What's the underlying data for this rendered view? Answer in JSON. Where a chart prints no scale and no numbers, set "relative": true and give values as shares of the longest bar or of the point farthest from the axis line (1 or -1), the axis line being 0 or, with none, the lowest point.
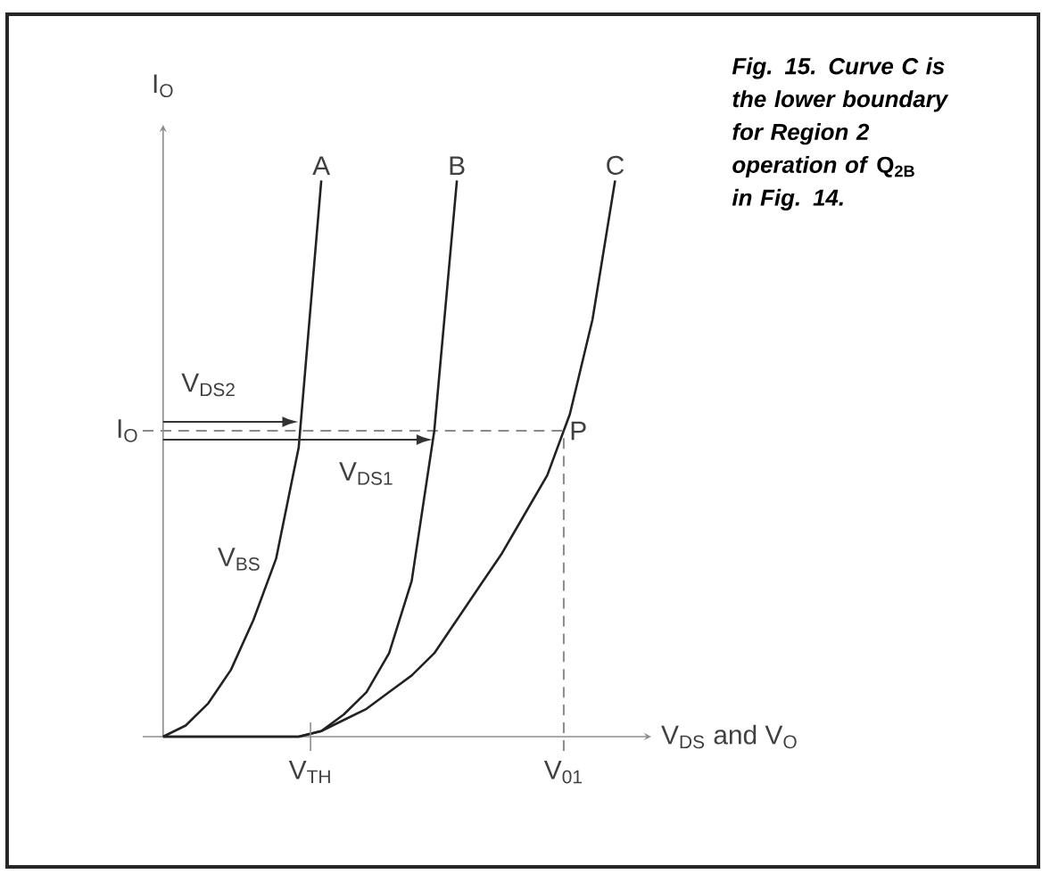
{
  "chart_data": {
    "type": "line",
    "relative": true,
    "title": "*Fig. 15. Curve C is the lower boundary for Region 2 operation of* Q$_{2B}$ *in Fig. 14.*",
    "xlabel": "V$_{DS}$ and V$_{O}$",
    "ylabel": "I$_{O}$",
    "categories": [
      null,
      null,
      null,
      null,
      null,
      null,
      null,
      null,
      null,
      null,
      null,
      null,
      null,
      null,
      null,
      null,
      null,
      null,
      null,
      null,
      null
    ],
    "series": [
      {
        "color": "#222222",
        "values": [
          0,
          0.02,
          0.06,
          0.12,
          0.21,
          0.32,
          0.52,
          1.0,
          null,
          null,
          null,
          null,
          null,
          null,
          null,
          null,
          null,
          null,
          null,
          null,
          null
        ]
      },
      {
        "color": "#222222",
        "values": [
          0,
          0,
          0,
          0,
          0,
          0,
          0,
          0.01,
          0.04,
          0.08,
          0.15,
          0.28,
          0.55,
          1.0,
          null,
          null,
          null,
          null,
          null,
          null,
          null
        ]
      },
      {
        "color": "#222222",
        "values": [
          0,
          0,
          0,
          0,
          0,
          0,
          0,
          0.01,
          0.03,
          0.05,
          0.08,
          0.11,
          0.15,
          0.21,
          0.27,
          0.33,
          0.4,
          0.47,
          0.58,
          0.75,
          1.0
        ]
      }
    ],
    "ref_lines": [
      {
        "axis": "y",
        "value": 0.55,
        "label": "I$_{O}$",
        "line_style": "dashed",
        "color": "#8a8a8a"
      }
    ],
    "annotations": [
      "A",
      "B",
      "C",
      "P",
      "V$_{DS2}$",
      "V$_{DS1}$",
      "V$_{BS}$",
      "V$_{TH}$",
      "V$_{01}$"
    ]
  }
}
